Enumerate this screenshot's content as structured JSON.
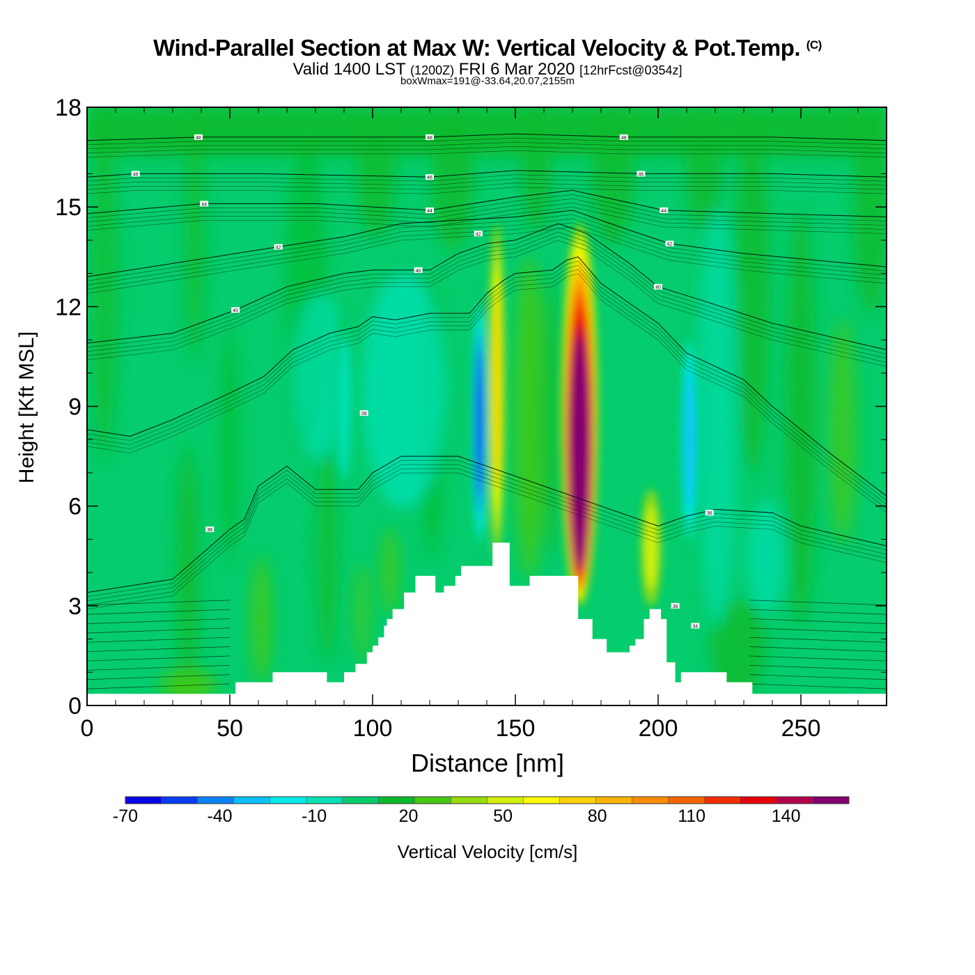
{
  "header": {
    "title": "Wind-Parallel Section at Max W: Vertical Velocity & Pot.Temp.",
    "copyright_mark": "(C)",
    "valid_prefix": "Valid 1400 LST",
    "valid_utc": "(1200Z)",
    "valid_date": "FRI 6 Mar 2020",
    "forecast_info": "[12hrFcst@0354z]",
    "box_info": "boxWmax=191@-33.64,20.07,2155m"
  },
  "chart_data": {
    "type": "heatmap",
    "title": "Wind-Parallel Section at Max W: Vertical Velocity & Pot.Temp.",
    "xlabel": "Distance [nm]",
    "ylabel": "Height [Kft MSL]",
    "xlim": [
      0,
      280
    ],
    "ylim": [
      0,
      18
    ],
    "x_ticks": [
      0,
      50,
      100,
      150,
      200,
      250
    ],
    "y_ticks": [
      0,
      3,
      6,
      9,
      12,
      15,
      18
    ],
    "colorbar": {
      "label": "Vertical Velocity [cm/s]",
      "min": -70,
      "max": 160,
      "step": 10,
      "tick_values": [
        -70,
        -40,
        -10,
        20,
        50,
        80,
        110,
        140
      ],
      "tick_labels": [
        "-70",
        "-40",
        "-10",
        "20",
        "50",
        "80",
        "110",
        "140"
      ],
      "colors": [
        "#0a05e6",
        "#0a3cf5",
        "#0a82f5",
        "#0ac0f5",
        "#05eaea",
        "#05e0b4",
        "#05cc6c",
        "#0aba2a",
        "#46c814",
        "#96dc0a",
        "#d2f00a",
        "#fafa00",
        "#fad200",
        "#fab400",
        "#fa8c00",
        "#fa6400",
        "#f52d00",
        "#e6000a",
        "#b4004b",
        "#820070"
      ]
    },
    "vertical_velocity_features": [
      {
        "kind": "downdraft",
        "x_nm": 137.5,
        "z_bottom_kft": 4.5,
        "z_top_kft": 12.5,
        "peak_cm_s": -65
      },
      {
        "kind": "updraft",
        "x_nm": 143.5,
        "z_bottom_kft": 4.5,
        "z_top_kft": 14.5,
        "peak_cm_s": 50
      },
      {
        "kind": "updraft",
        "x_nm": 172.5,
        "z_bottom_kft": 3.0,
        "z_top_kft": 14.5,
        "peak_cm_s": 150
      },
      {
        "kind": "updraft",
        "x_nm": 197.5,
        "z_bottom_kft": 3.0,
        "z_top_kft": 6.5,
        "peak_cm_s": 35
      },
      {
        "kind": "downdraft",
        "x_nm": 211,
        "z_bottom_kft": 4.5,
        "z_top_kft": 11.5,
        "peak_cm_s": -40
      },
      {
        "kind": "downdraft",
        "x_nm": 90,
        "z_bottom_kft": 6,
        "z_top_kft": 12,
        "peak_cm_s": -20
      }
    ],
    "terrain": {
      "x_nm": [
        0,
        51,
        52,
        65,
        84,
        90,
        94,
        98,
        100,
        102,
        104,
        105,
        107,
        111,
        115,
        117,
        122,
        125,
        129,
        131,
        136,
        138,
        142,
        146,
        148,
        155,
        163,
        170,
        172,
        174,
        177,
        182,
        188,
        190,
        192,
        195,
        197,
        201,
        203,
        206,
        208,
        221,
        224,
        232,
        233,
        280
      ],
      "height_kft": [
        0.35,
        0.35,
        0.7,
        1.0,
        0.7,
        1.0,
        1.25,
        1.6,
        1.8,
        2.05,
        2.4,
        2.6,
        2.9,
        3.4,
        3.9,
        3.9,
        3.4,
        3.6,
        3.9,
        4.2,
        4.2,
        4.2,
        4.9,
        4.9,
        3.6,
        3.9,
        3.9,
        3.9,
        2.6,
        2.6,
        2.0,
        1.6,
        1.6,
        1.8,
        2.0,
        2.6,
        2.9,
        2.6,
        1.3,
        0.7,
        1.0,
        1.0,
        0.7,
        0.7,
        0.35,
        0.35
      ]
    },
    "theta_labels": [
      {
        "text": "48",
        "x_nm": 39,
        "z_kft": 17.1
      },
      {
        "text": "48",
        "x_nm": 120,
        "z_kft": 17.1
      },
      {
        "text": "48",
        "x_nm": 188,
        "z_kft": 17.1
      },
      {
        "text": "46",
        "x_nm": 17,
        "z_kft": 16.0
      },
      {
        "text": "46",
        "x_nm": 120,
        "z_kft": 15.9
      },
      {
        "text": "46",
        "x_nm": 194,
        "z_kft": 16.0
      },
      {
        "text": "44",
        "x_nm": 41,
        "z_kft": 15.1
      },
      {
        "text": "44",
        "x_nm": 120,
        "z_kft": 14.9
      },
      {
        "text": "44",
        "x_nm": 202,
        "z_kft": 14.9
      },
      {
        "text": "42",
        "x_nm": 67,
        "z_kft": 13.8
      },
      {
        "text": "42",
        "x_nm": 137,
        "z_kft": 14.2
      },
      {
        "text": "42",
        "x_nm": 204,
        "z_kft": 13.9
      },
      {
        "text": "40",
        "x_nm": 116,
        "z_kft": 13.1
      },
      {
        "text": "40",
        "x_nm": 200,
        "z_kft": 12.6
      },
      {
        "text": "40",
        "x_nm": 52,
        "z_kft": 11.9
      },
      {
        "text": "38",
        "x_nm": 97,
        "z_kft": 8.8
      },
      {
        "text": "36",
        "x_nm": 43,
        "z_kft": 5.3
      },
      {
        "text": "36",
        "x_nm": 218,
        "z_kft": 5.8
      },
      {
        "text": "36",
        "x_nm": 206,
        "z_kft": 3.0
      },
      {
        "text": "34",
        "x_nm": 213,
        "z_kft": 2.4
      }
    ],
    "theta_contours_kft": [
      {
        "theta": 36,
        "x_nm": [
          0,
          30,
          50,
          55,
          60,
          70,
          80,
          95,
          100,
          110,
          120,
          130,
          200,
          210,
          220,
          240,
          250,
          280
        ],
        "z_kft": [
          3.4,
          3.8,
          5.3,
          5.6,
          6.6,
          7.2,
          6.5,
          6.5,
          7.0,
          7.5,
          7.5,
          7.5,
          5.4,
          5.7,
          5.9,
          5.8,
          5.4,
          4.8
        ]
      },
      {
        "theta": 38,
        "x_nm": [
          0,
          15,
          30,
          50,
          62,
          72,
          85,
          95,
          100,
          108,
          120,
          134,
          140,
          146,
          150,
          163,
          168,
          172,
          180,
          200,
          210,
          230,
          240,
          260,
          280
        ],
        "z_kft": [
          8.3,
          8.1,
          8.6,
          9.4,
          9.9,
          10.7,
          11.2,
          11.4,
          11.7,
          11.6,
          11.8,
          11.8,
          12.4,
          12.8,
          13.0,
          13.1,
          13.4,
          13.5,
          12.7,
          11.5,
          10.6,
          9.8,
          9.0,
          7.6,
          6.3
        ]
      },
      {
        "theta": 40,
        "x_nm": [
          0,
          30,
          52,
          70,
          90,
          100,
          110,
          120,
          130,
          140,
          150,
          165,
          175,
          190,
          200,
          215,
          240,
          280
        ],
        "z_kft": [
          10.9,
          11.2,
          11.9,
          12.6,
          13.0,
          13.1,
          13.1,
          13.1,
          13.6,
          13.9,
          14.0,
          14.5,
          14.2,
          13.3,
          12.6,
          12.2,
          11.5,
          10.7
        ]
      },
      {
        "theta": 42,
        "x_nm": [
          0,
          30,
          67,
          90,
          110,
          130,
          150,
          170,
          190,
          204,
          230,
          280
        ],
        "z_kft": [
          12.9,
          13.3,
          13.8,
          14.1,
          14.5,
          14.6,
          14.7,
          14.9,
          14.3,
          13.9,
          13.6,
          13.2
        ]
      },
      {
        "theta": 44,
        "x_nm": [
          0,
          41,
          80,
          120,
          150,
          170,
          202,
          240,
          280
        ],
        "z_kft": [
          14.8,
          15.1,
          15.1,
          14.9,
          15.3,
          15.5,
          14.9,
          14.8,
          14.7
        ]
      },
      {
        "theta": 46,
        "x_nm": [
          0,
          17,
          60,
          120,
          150,
          194,
          240,
          280
        ],
        "z_kft": [
          15.9,
          16.0,
          16.0,
          15.9,
          16.1,
          16.0,
          16.0,
          15.9
        ]
      },
      {
        "theta": 48,
        "x_nm": [
          0,
          39,
          80,
          120,
          150,
          188,
          240,
          280
        ],
        "z_kft": [
          17.0,
          17.1,
          17.1,
          17.1,
          17.2,
          17.1,
          17.1,
          17.0
        ]
      }
    ]
  }
}
